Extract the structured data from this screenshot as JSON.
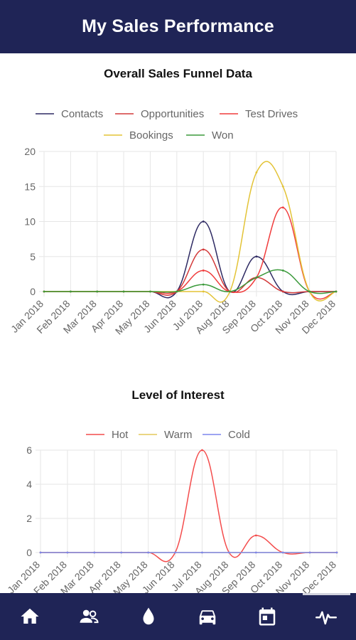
{
  "header": {
    "title": "My Sales Performance"
  },
  "colors": {
    "header_bg": "#1f2456",
    "contacts": "#2e2a63",
    "opportunities": "#d33a3a",
    "test_drives": "#f03c3c",
    "bookings": "#e3c336",
    "won": "#3b9a3b",
    "hot": "#f44c4c",
    "warm": "#e3c95a",
    "cold": "#7d86ee"
  },
  "chart_data": [
    {
      "type": "line",
      "title": "Overall Sales Funnel Data",
      "categories": [
        "Jan 2018",
        "Feb 2018",
        "Mar 2018",
        "Apr 2018",
        "May 2018",
        "Jun 2018",
        "Jul 2018",
        "Aug 2018",
        "Sep 2018",
        "Oct 2018",
        "Nov 2018",
        "Dec 2018"
      ],
      "ylim": [
        0,
        20
      ],
      "yticks": [
        "0",
        "5",
        "10",
        "15",
        "20"
      ],
      "grid": true,
      "legend_position": "top",
      "series": [
        {
          "name": "Contacts",
          "color": "#2e2a63",
          "values": [
            0,
            0,
            0,
            0,
            0,
            0,
            10,
            0,
            5,
            0,
            0,
            0
          ]
        },
        {
          "name": "Opportunities",
          "color": "#d33a3a",
          "values": [
            0,
            0,
            0,
            0,
            0,
            0,
            6,
            0,
            2,
            0,
            0,
            0
          ]
        },
        {
          "name": "Test Drives",
          "color": "#f03c3c",
          "values": [
            0,
            0,
            0,
            0,
            0,
            0,
            3,
            0,
            2,
            12,
            0,
            0
          ]
        },
        {
          "name": "Bookings",
          "color": "#e3c336",
          "values": [
            0,
            0,
            0,
            0,
            0,
            0,
            0,
            0,
            17,
            15,
            0,
            0
          ]
        },
        {
          "name": "Won",
          "color": "#3b9a3b",
          "values": [
            0,
            0,
            0,
            0,
            0,
            0,
            1,
            0,
            2,
            3,
            0,
            0
          ]
        }
      ]
    },
    {
      "type": "line",
      "title": "Level of Interest",
      "categories": [
        "Jan 2018",
        "Feb 2018",
        "Mar 2018",
        "Apr 2018",
        "May 2018",
        "Jun 2018",
        "Jul 2018",
        "Aug 2018",
        "Sep 2018",
        "Oct 2018",
        "Nov 2018",
        "Dec 2018"
      ],
      "ylim": [
        0,
        6
      ],
      "yticks": [
        "0",
        "2",
        "4",
        "6"
      ],
      "grid": true,
      "legend_position": "top",
      "series": [
        {
          "name": "Hot",
          "color": "#f44c4c",
          "values": [
            0,
            0,
            0,
            0,
            0,
            0,
            6,
            0,
            1,
            0,
            0,
            0
          ]
        },
        {
          "name": "Warm",
          "color": "#e3c95a",
          "values": [
            0,
            0,
            0,
            0,
            0,
            0,
            0,
            0,
            0,
            0,
            0,
            0
          ]
        },
        {
          "name": "Cold",
          "color": "#7d86ee",
          "values": [
            0,
            0,
            0,
            0,
            0,
            0,
            0,
            0,
            0,
            0,
            0,
            0
          ]
        }
      ]
    }
  ],
  "nav": {
    "items": [
      {
        "name": "home-icon",
        "label": ""
      },
      {
        "name": "contacts-icon",
        "label": ""
      },
      {
        "name": "lead-drop-icon",
        "label": ""
      },
      {
        "name": "car-icon",
        "label": ""
      },
      {
        "name": "calendar-icon",
        "label": ""
      },
      {
        "name": "activity-pulse-icon",
        "label": ""
      }
    ],
    "active": 5
  }
}
